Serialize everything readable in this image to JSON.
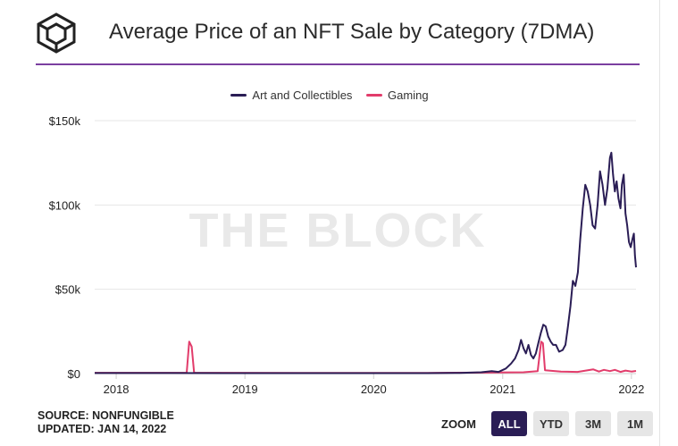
{
  "header": {
    "title": "Average Price of an NFT Sale by Category (7DMA)",
    "logo_icon": "cube-logo-icon"
  },
  "watermark": "THE BLOCK",
  "footer": {
    "source": "SOURCE: NONFUNGIBLE",
    "updated": "UPDATED: JAN 14, 2022"
  },
  "zoom": {
    "label": "ZOOM",
    "buttons": [
      "ALL",
      "YTD",
      "3M",
      "1M"
    ],
    "active": "ALL"
  },
  "chart_data": {
    "type": "line",
    "title": "Average Price of an NFT Sale by Category (7DMA)",
    "xlabel": "",
    "ylabel": "",
    "x_ticks": [
      "2018",
      "2019",
      "2020",
      "2021",
      "2022"
    ],
    "y_ticks": [
      "$0",
      "$50k",
      "$100k",
      "$150k"
    ],
    "x_range": [
      "2017-11-01",
      "2022-01-14"
    ],
    "ylim": [
      0,
      150000
    ],
    "grid": "horizontal",
    "legend_position": "top-center",
    "series": [
      {
        "name": "Art and Collectibles",
        "color": "#2a1d55",
        "points": [
          [
            "2017-11-01",
            300
          ],
          [
            "2018-06-01",
            300
          ],
          [
            "2019-06-01",
            250
          ],
          [
            "2020-06-01",
            250
          ],
          [
            "2020-09-01",
            400
          ],
          [
            "2020-11-01",
            800
          ],
          [
            "2020-12-01",
            1500
          ],
          [
            "2020-12-20",
            1000
          ],
          [
            "2021-01-10",
            3000
          ],
          [
            "2021-01-25",
            6000
          ],
          [
            "2021-02-05",
            9000
          ],
          [
            "2021-02-15",
            14000
          ],
          [
            "2021-02-22",
            20000
          ],
          [
            "2021-03-01",
            15000
          ],
          [
            "2021-03-08",
            12000
          ],
          [
            "2021-03-15",
            17000
          ],
          [
            "2021-03-22",
            11000
          ],
          [
            "2021-03-29",
            9000
          ],
          [
            "2021-04-05",
            12000
          ],
          [
            "2021-04-12",
            18000
          ],
          [
            "2021-04-19",
            24000
          ],
          [
            "2021-04-26",
            29000
          ],
          [
            "2021-05-03",
            28000
          ],
          [
            "2021-05-10",
            22000
          ],
          [
            "2021-05-17",
            19000
          ],
          [
            "2021-05-24",
            17000
          ],
          [
            "2021-06-01",
            17000
          ],
          [
            "2021-06-10",
            13000
          ],
          [
            "2021-06-20",
            14000
          ],
          [
            "2021-06-28",
            17000
          ],
          [
            "2021-07-05",
            28000
          ],
          [
            "2021-07-12",
            40000
          ],
          [
            "2021-07-19",
            55000
          ],
          [
            "2021-07-26",
            52000
          ],
          [
            "2021-08-02",
            60000
          ],
          [
            "2021-08-09",
            80000
          ],
          [
            "2021-08-16",
            98000
          ],
          [
            "2021-08-23",
            112000
          ],
          [
            "2021-08-30",
            108000
          ],
          [
            "2021-09-06",
            100000
          ],
          [
            "2021-09-13",
            88000
          ],
          [
            "2021-09-20",
            86000
          ],
          [
            "2021-09-27",
            100000
          ],
          [
            "2021-10-04",
            120000
          ],
          [
            "2021-10-11",
            112000
          ],
          [
            "2021-10-18",
            100000
          ],
          [
            "2021-10-25",
            110000
          ],
          [
            "2021-11-01",
            128000
          ],
          [
            "2021-11-05",
            131000
          ],
          [
            "2021-11-10",
            118000
          ],
          [
            "2021-11-15",
            108000
          ],
          [
            "2021-11-20",
            114000
          ],
          [
            "2021-11-25",
            104000
          ],
          [
            "2021-12-01",
            98000
          ],
          [
            "2021-12-05",
            112000
          ],
          [
            "2021-12-10",
            118000
          ],
          [
            "2021-12-15",
            95000
          ],
          [
            "2021-12-20",
            88000
          ],
          [
            "2021-12-25",
            78000
          ],
          [
            "2021-12-30",
            75000
          ],
          [
            "2022-01-04",
            80000
          ],
          [
            "2022-01-08",
            83000
          ],
          [
            "2022-01-11",
            70000
          ],
          [
            "2022-01-14",
            63000
          ]
        ]
      },
      {
        "name": "Gaming",
        "color": "#e23c6b",
        "points": [
          [
            "2017-11-01",
            500
          ],
          [
            "2018-07-20",
            500
          ],
          [
            "2018-07-27",
            19000
          ],
          [
            "2018-08-03",
            16000
          ],
          [
            "2018-08-10",
            500
          ],
          [
            "2019-06-01",
            400
          ],
          [
            "2020-06-01",
            400
          ],
          [
            "2020-11-01",
            600
          ],
          [
            "2021-03-01",
            800
          ],
          [
            "2021-04-10",
            1500
          ],
          [
            "2021-04-20",
            19000
          ],
          [
            "2021-04-25",
            18000
          ],
          [
            "2021-05-01",
            2000
          ],
          [
            "2021-06-15",
            1200
          ],
          [
            "2021-08-01",
            1000
          ],
          [
            "2021-09-15",
            2500
          ],
          [
            "2021-10-01",
            1200
          ],
          [
            "2021-10-15",
            2200
          ],
          [
            "2021-11-01",
            1500
          ],
          [
            "2021-11-15",
            2200
          ],
          [
            "2021-12-01",
            1000
          ],
          [
            "2021-12-15",
            1800
          ],
          [
            "2022-01-01",
            1200
          ],
          [
            "2022-01-14",
            1600
          ]
        ]
      }
    ]
  }
}
